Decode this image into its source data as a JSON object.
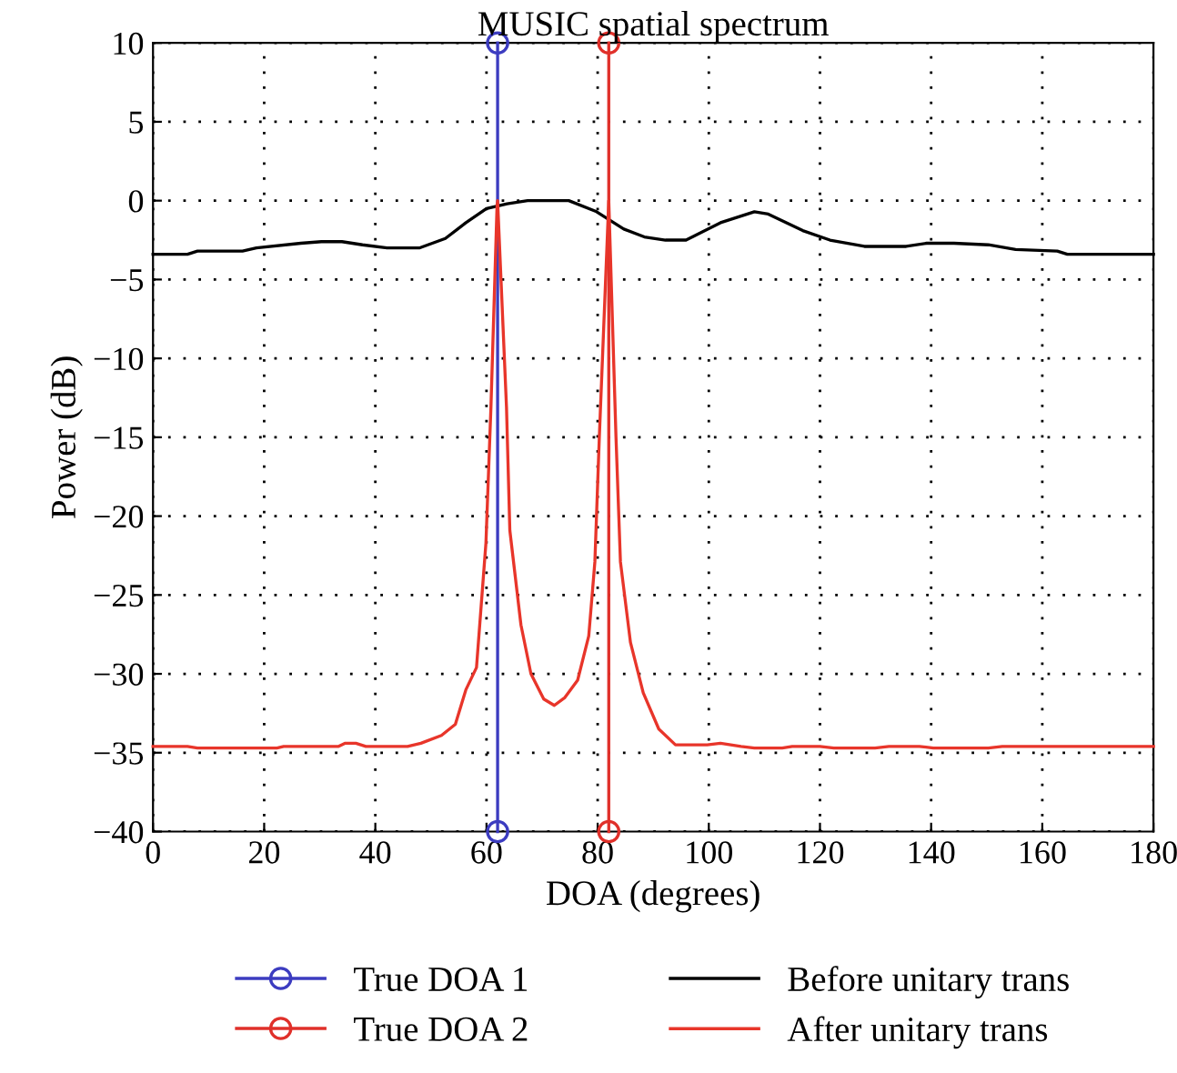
{
  "chart_data": {
    "type": "line",
    "title": "MUSIC spatial spectrum",
    "xlabel": "DOA (degrees)",
    "ylabel": "Power (dB)",
    "xlim": [
      0,
      180
    ],
    "xticks": [
      0,
      20,
      40,
      60,
      80,
      100,
      120,
      140,
      160,
      180
    ],
    "ylim": [
      -40,
      10
    ],
    "yticks": [
      -40,
      -35,
      -30,
      -25,
      -20,
      -15,
      -10,
      -5,
      0,
      5,
      10
    ],
    "grid": true,
    "legend": "bottom",
    "series": [
      {
        "name": "True DOA 1",
        "color": "#3c3cc0",
        "marker": "circle",
        "x": [
          62,
          62
        ],
        "values": [
          -40,
          10
        ]
      },
      {
        "name": "True DOA 2",
        "color": "#e0302a",
        "marker": "circle",
        "x": [
          82,
          82
        ],
        "values": [
          -40,
          10
        ]
      },
      {
        "name": "Before unitary trans",
        "color": "#000000",
        "marker": "none",
        "x": [
          0,
          6.2,
          8.0,
          16.1,
          18.6,
          26.6,
          30.3,
          34.0,
          37.7,
          42.1,
          47.9,
          52.6,
          56.3,
          60.0,
          63.7,
          67.4,
          74.8,
          79.8,
          84.7,
          88.4,
          92.2,
          95.9,
          102.1,
          108.2,
          110.7,
          116.9,
          121.8,
          128.0,
          135.5,
          139.2,
          144.1,
          150.3,
          155.2,
          162.7,
          164.5,
          180
        ],
        "values": [
          -3.4,
          -3.4,
          -3.2,
          -3.2,
          -3.0,
          -2.7,
          -2.6,
          -2.6,
          -2.8,
          -3.0,
          -3.0,
          -2.4,
          -1.4,
          -0.5,
          -0.2,
          0,
          0,
          -0.7,
          -1.8,
          -2.3,
          -2.5,
          -2.5,
          -1.4,
          -0.7,
          -0.85,
          -1.9,
          -2.5,
          -2.9,
          -2.9,
          -2.7,
          -2.7,
          -2.8,
          -3.1,
          -3.2,
          -3.4,
          -3.4
        ]
      },
      {
        "name": "After unitary trans",
        "color": "#e8352a",
        "marker": "none",
        "x": [
          0,
          6.2,
          8.0,
          22.3,
          23.5,
          33.4,
          34.6,
          36.5,
          38.3,
          45.8,
          48.2,
          51.9,
          54.4,
          56.3,
          58.2,
          59.9,
          60.8,
          61.9,
          62.0,
          63.6,
          64.2,
          66.2,
          68.0,
          70.3,
          72.2,
          74.1,
          76.4,
          78.4,
          79.5,
          80.3,
          82.0,
          83.3,
          84.1,
          85.9,
          88.2,
          91.0,
          94.0,
          99.7,
          102.1,
          105.8,
          108.2,
          113.2,
          115.0,
          120.0,
          122.5,
          129.9,
          132.4,
          137.9,
          140.4,
          150.3,
          152.8,
          180
        ],
        "values": [
          -34.6,
          -34.6,
          -34.7,
          -34.7,
          -34.6,
          -34.6,
          -34.4,
          -34.4,
          -34.6,
          -34.6,
          -34.4,
          -33.9,
          -33.2,
          -31.0,
          -29.6,
          -21.7,
          -13.1,
          -0.3,
          0,
          -13.1,
          -20.9,
          -26.9,
          -30.0,
          -31.6,
          -32.0,
          -31.5,
          -30.4,
          -27.6,
          -22.9,
          -15.0,
          0,
          -15.0,
          -22.9,
          -28.0,
          -31.2,
          -33.5,
          -34.5,
          -34.5,
          -34.4,
          -34.6,
          -34.7,
          -34.7,
          -34.6,
          -34.6,
          -34.7,
          -34.7,
          -34.6,
          -34.6,
          -34.7,
          -34.7,
          -34.6,
          -34.6
        ]
      }
    ]
  }
}
